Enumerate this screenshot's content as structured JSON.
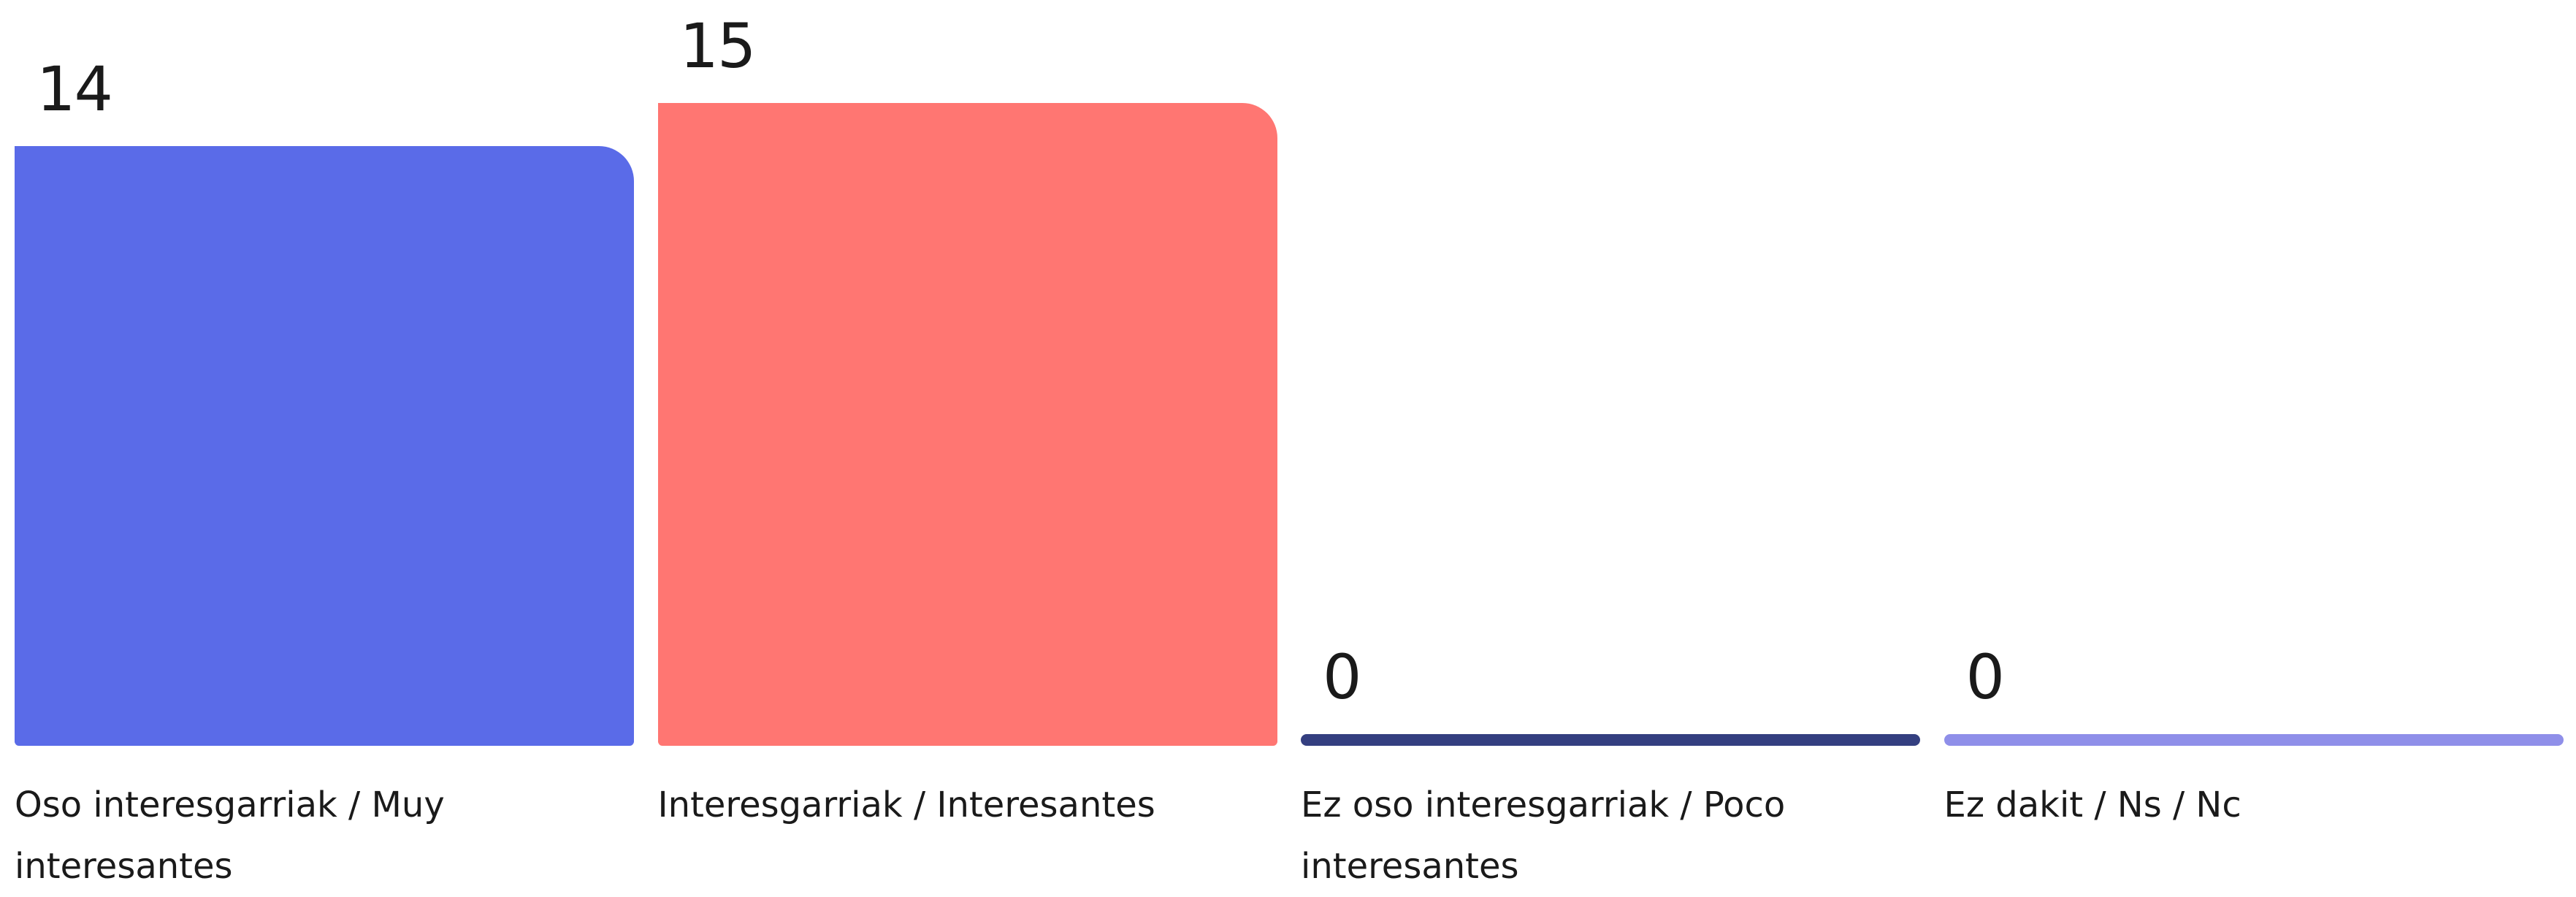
{
  "chart_data": {
    "type": "bar",
    "categories": [
      "Oso interesgarriak / Muy interesantes",
      "Interesgarriak / Interesantes",
      "Ez oso interesgarriak / Poco interesantes",
      "Ez dakit / Ns / Nc"
    ],
    "values": [
      14,
      15,
      0,
      0
    ],
    "colors": [
      "#5a6be8",
      "#ff7672",
      "#343f80",
      "#8f8fe9"
    ]
  }
}
